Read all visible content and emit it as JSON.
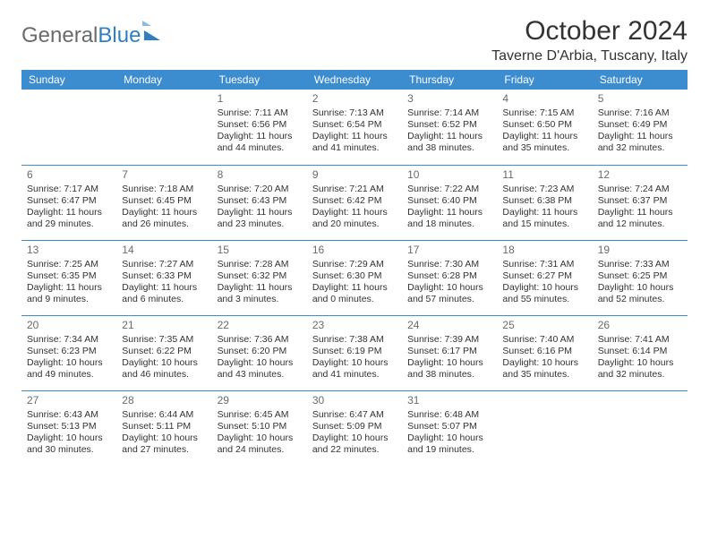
{
  "logo": {
    "part1": "General",
    "part2": "Blue"
  },
  "title": "October 2024",
  "location": "Taverne D'Arbia, Tuscany, Italy",
  "colors": {
    "header_bg": "#3c8cd0",
    "header_text": "#ffffff",
    "rule": "#3c8cd0",
    "text": "#333333",
    "daynum": "#6b6b6b",
    "logo_gray": "#6b6b6b",
    "logo_blue": "#2f7fc2",
    "background": "#ffffff"
  },
  "typography": {
    "title_fontsize": 30,
    "location_fontsize": 16,
    "weekday_fontsize": 12,
    "daynum_fontsize": 12,
    "cell_fontsize": 10.5,
    "logo_fontsize": 24
  },
  "weekdays": [
    "Sunday",
    "Monday",
    "Tuesday",
    "Wednesday",
    "Thursday",
    "Friday",
    "Saturday"
  ],
  "weeks": [
    [
      null,
      null,
      {
        "n": "1",
        "sunrise": "7:11 AM",
        "sunset": "6:56 PM",
        "daylight": "11 hours and 44 minutes."
      },
      {
        "n": "2",
        "sunrise": "7:13 AM",
        "sunset": "6:54 PM",
        "daylight": "11 hours and 41 minutes."
      },
      {
        "n": "3",
        "sunrise": "7:14 AM",
        "sunset": "6:52 PM",
        "daylight": "11 hours and 38 minutes."
      },
      {
        "n": "4",
        "sunrise": "7:15 AM",
        "sunset": "6:50 PM",
        "daylight": "11 hours and 35 minutes."
      },
      {
        "n": "5",
        "sunrise": "7:16 AM",
        "sunset": "6:49 PM",
        "daylight": "11 hours and 32 minutes."
      }
    ],
    [
      {
        "n": "6",
        "sunrise": "7:17 AM",
        "sunset": "6:47 PM",
        "daylight": "11 hours and 29 minutes."
      },
      {
        "n": "7",
        "sunrise": "7:18 AM",
        "sunset": "6:45 PM",
        "daylight": "11 hours and 26 minutes."
      },
      {
        "n": "8",
        "sunrise": "7:20 AM",
        "sunset": "6:43 PM",
        "daylight": "11 hours and 23 minutes."
      },
      {
        "n": "9",
        "sunrise": "7:21 AM",
        "sunset": "6:42 PM",
        "daylight": "11 hours and 20 minutes."
      },
      {
        "n": "10",
        "sunrise": "7:22 AM",
        "sunset": "6:40 PM",
        "daylight": "11 hours and 18 minutes."
      },
      {
        "n": "11",
        "sunrise": "7:23 AM",
        "sunset": "6:38 PM",
        "daylight": "11 hours and 15 minutes."
      },
      {
        "n": "12",
        "sunrise": "7:24 AM",
        "sunset": "6:37 PM",
        "daylight": "11 hours and 12 minutes."
      }
    ],
    [
      {
        "n": "13",
        "sunrise": "7:25 AM",
        "sunset": "6:35 PM",
        "daylight": "11 hours and 9 minutes."
      },
      {
        "n": "14",
        "sunrise": "7:27 AM",
        "sunset": "6:33 PM",
        "daylight": "11 hours and 6 minutes."
      },
      {
        "n": "15",
        "sunrise": "7:28 AM",
        "sunset": "6:32 PM",
        "daylight": "11 hours and 3 minutes."
      },
      {
        "n": "16",
        "sunrise": "7:29 AM",
        "sunset": "6:30 PM",
        "daylight": "11 hours and 0 minutes."
      },
      {
        "n": "17",
        "sunrise": "7:30 AM",
        "sunset": "6:28 PM",
        "daylight": "10 hours and 57 minutes."
      },
      {
        "n": "18",
        "sunrise": "7:31 AM",
        "sunset": "6:27 PM",
        "daylight": "10 hours and 55 minutes."
      },
      {
        "n": "19",
        "sunrise": "7:33 AM",
        "sunset": "6:25 PM",
        "daylight": "10 hours and 52 minutes."
      }
    ],
    [
      {
        "n": "20",
        "sunrise": "7:34 AM",
        "sunset": "6:23 PM",
        "daylight": "10 hours and 49 minutes."
      },
      {
        "n": "21",
        "sunrise": "7:35 AM",
        "sunset": "6:22 PM",
        "daylight": "10 hours and 46 minutes."
      },
      {
        "n": "22",
        "sunrise": "7:36 AM",
        "sunset": "6:20 PM",
        "daylight": "10 hours and 43 minutes."
      },
      {
        "n": "23",
        "sunrise": "7:38 AM",
        "sunset": "6:19 PM",
        "daylight": "10 hours and 41 minutes."
      },
      {
        "n": "24",
        "sunrise": "7:39 AM",
        "sunset": "6:17 PM",
        "daylight": "10 hours and 38 minutes."
      },
      {
        "n": "25",
        "sunrise": "7:40 AM",
        "sunset": "6:16 PM",
        "daylight": "10 hours and 35 minutes."
      },
      {
        "n": "26",
        "sunrise": "7:41 AM",
        "sunset": "6:14 PM",
        "daylight": "10 hours and 32 minutes."
      }
    ],
    [
      {
        "n": "27",
        "sunrise": "6:43 AM",
        "sunset": "5:13 PM",
        "daylight": "10 hours and 30 minutes."
      },
      {
        "n": "28",
        "sunrise": "6:44 AM",
        "sunset": "5:11 PM",
        "daylight": "10 hours and 27 minutes."
      },
      {
        "n": "29",
        "sunrise": "6:45 AM",
        "sunset": "5:10 PM",
        "daylight": "10 hours and 24 minutes."
      },
      {
        "n": "30",
        "sunrise": "6:47 AM",
        "sunset": "5:09 PM",
        "daylight": "10 hours and 22 minutes."
      },
      {
        "n": "31",
        "sunrise": "6:48 AM",
        "sunset": "5:07 PM",
        "daylight": "10 hours and 19 minutes."
      },
      null,
      null
    ]
  ],
  "labels": {
    "sunrise_prefix": "Sunrise: ",
    "sunset_prefix": "Sunset: ",
    "daylight_prefix": "Daylight: "
  }
}
